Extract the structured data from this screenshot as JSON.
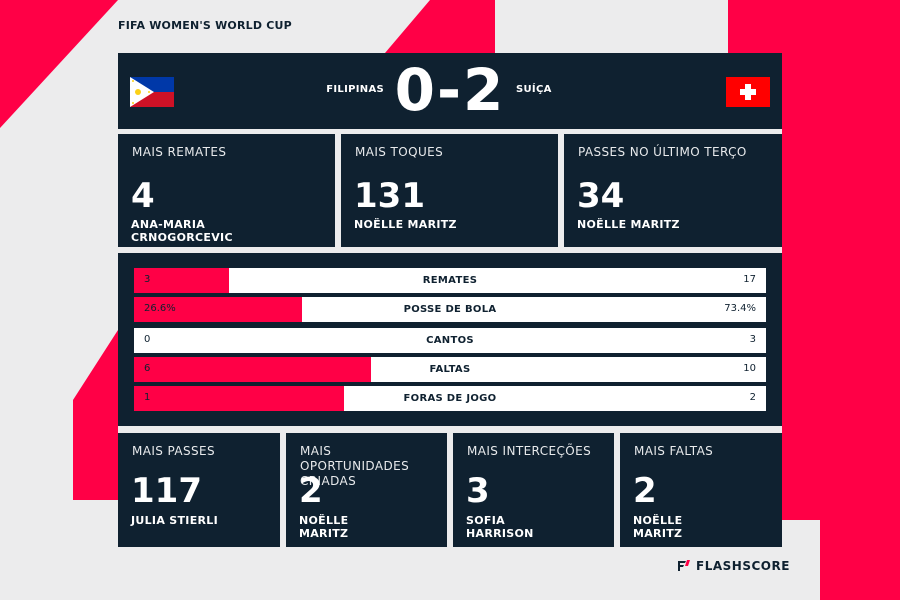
{
  "competition": "FIFA WOMEN'S WORLD CUP",
  "match": {
    "home_team": "FILIPINAS",
    "away_team": "SUÍÇA",
    "score": "0-2"
  },
  "top_cards": [
    {
      "title": "MAIS REMATES",
      "value": "4",
      "player_line1": "ANA-MARIA",
      "player_line2": "CRNOGORCEVIC"
    },
    {
      "title": "MAIS TOQUES",
      "value": "131",
      "player_line1": "NOËLLE MARITZ",
      "player_line2": ""
    },
    {
      "title": "PASSES NO ÚLTIMO TERÇO",
      "value": "34",
      "player_line1": "NOËLLE MARITZ",
      "player_line2": ""
    }
  ],
  "stats": [
    {
      "label": "REMATES",
      "home": "3",
      "away": "17",
      "home_share": 0.15
    },
    {
      "label": "POSSE DE BOLA",
      "home": "26.6%",
      "away": "73.4%",
      "home_share": 0.266
    },
    {
      "label": "CANTOS",
      "home": "0",
      "away": "3",
      "home_share": 0.0
    },
    {
      "label": "FALTAS",
      "home": "6",
      "away": "10",
      "home_share": 0.375
    },
    {
      "label": "FORAS DE JOGO",
      "home": "1",
      "away": "2",
      "home_share": 0.333
    }
  ],
  "bottom_cards": [
    {
      "title": "MAIS PASSES",
      "value": "117",
      "player_line1": "JULIA STIERLI",
      "player_line2": ""
    },
    {
      "title": "MAIS OPORTUNIDADES CRIADAS",
      "value": "2",
      "player_line1": "NOËLLE",
      "player_line2": "MARITZ"
    },
    {
      "title": "MAIS INTERCEÇÕES",
      "value": "3",
      "player_line1": "SOFIA",
      "player_line2": "HARRISON"
    },
    {
      "title": "MAIS FALTAS",
      "value": "2",
      "player_line1": "NOËLLE",
      "player_line2": "MARITZ"
    }
  ],
  "branding": {
    "logo_text": "FLASHSCORE"
  },
  "colors": {
    "navy": "#0f2130",
    "accent": "#ff0046",
    "background": "#ececed"
  }
}
